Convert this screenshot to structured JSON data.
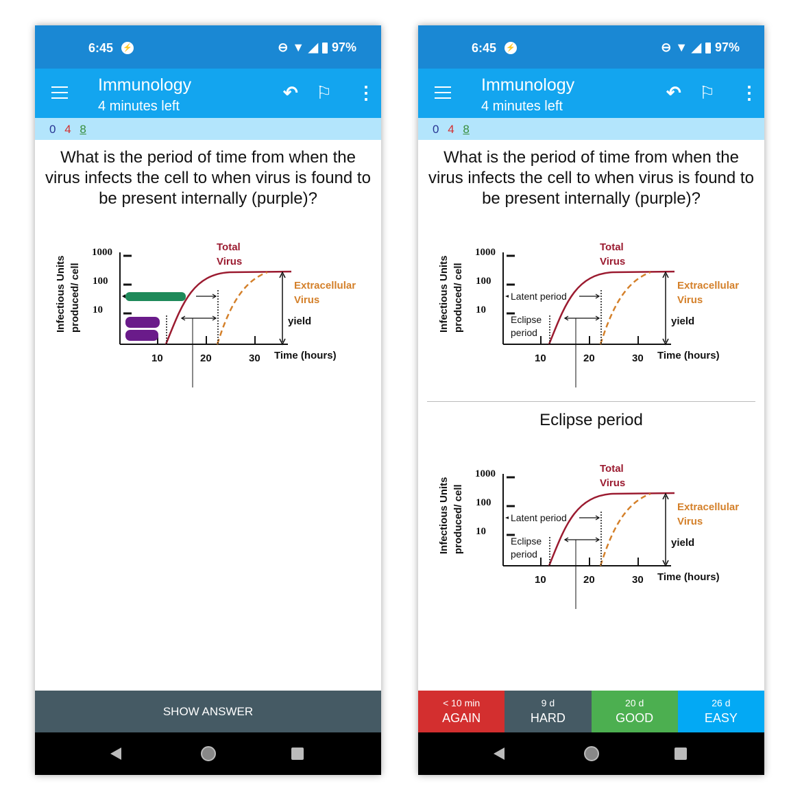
{
  "status_bar": {
    "time": "6:45",
    "battery": "97%",
    "icons": [
      "messenger-icon",
      "do-not-disturb-icon",
      "wifi-icon",
      "signal-icon",
      "battery-icon"
    ]
  },
  "toolbar": {
    "title": "Immunology",
    "subtitle": "4 minutes left",
    "icons": [
      "menu-icon",
      "undo-icon",
      "flag-icon",
      "more-vert-icon"
    ]
  },
  "counts": {
    "new": "0",
    "learning": "4",
    "review": "8"
  },
  "question": "What is the period of time from when the virus infects the cell to when virus is found to be present internally (purple)?",
  "answer": "Eclipse period",
  "diagram": {
    "ylabel1": "Infectious Units",
    "ylabel2": "produced/ cell",
    "yticks": [
      "1000",
      "100",
      "10"
    ],
    "xticks": [
      "10",
      "20",
      "30"
    ],
    "xlabel": "Time (hours)",
    "total1": "Total",
    "total2": "Virus",
    "extra1": "Extracellular",
    "extra2": "Virus",
    "yield": "yield",
    "latent": "Latent period",
    "eclipse1": "Eclipse",
    "eclipse2": "period",
    "colors": {
      "total": "#9b1b30",
      "extracellular": "#d4802a",
      "green": "#1f8a5a",
      "purple": "#6a1b8a"
    }
  },
  "show_answer": "SHOW ANSWER",
  "ease_buttons": [
    {
      "interval": "< 10 min",
      "label": "AGAIN",
      "color": "#d32f2f"
    },
    {
      "interval": "9 d",
      "label": "HARD",
      "color": "#455a64"
    },
    {
      "interval": "20 d",
      "label": "GOOD",
      "color": "#4caf50"
    },
    {
      "interval": "26 d",
      "label": "EASY",
      "color": "#03a9f4"
    }
  ]
}
